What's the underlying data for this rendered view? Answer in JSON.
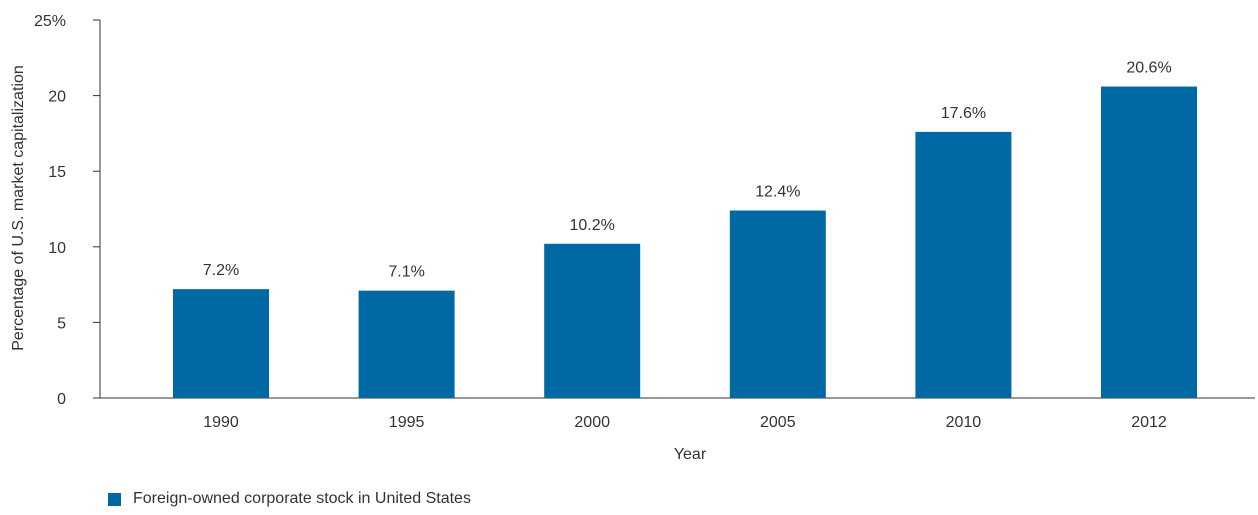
{
  "chart_data": {
    "type": "bar",
    "categories": [
      "1990",
      "1995",
      "2000",
      "2005",
      "2010",
      "2012"
    ],
    "series": [
      {
        "name": "Foreign-owned corporate stock in United States",
        "values": [
          7.2,
          7.1,
          10.2,
          12.4,
          17.6,
          20.6
        ],
        "labels": [
          "7.2%",
          "7.1%",
          "10.2%",
          "12.4%",
          "17.6%",
          "20.6%"
        ],
        "color": "#0069a3"
      }
    ],
    "xlabel": "Year",
    "ylabel": "Percentage of U.S. market capitalization",
    "ylim": [
      0,
      25
    ],
    "yticks": [
      0,
      5,
      10,
      15,
      20,
      25
    ],
    "ytick_labels": [
      "0",
      "5",
      "10",
      "15",
      "20",
      "25%"
    ],
    "grid": false,
    "legend_position": "bottom-left"
  }
}
